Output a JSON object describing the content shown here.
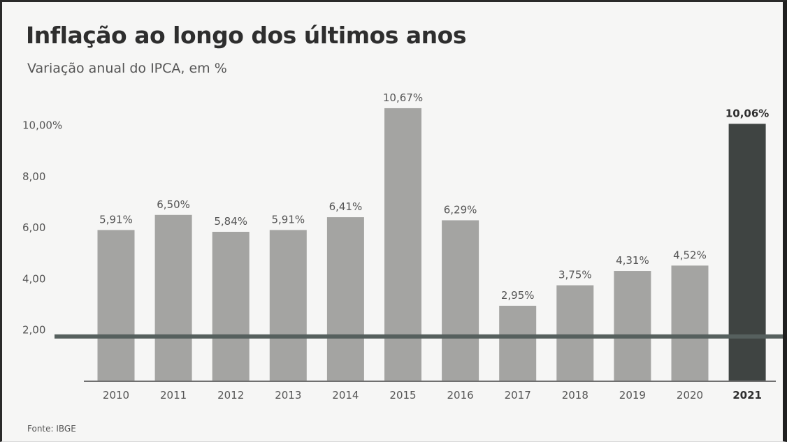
{
  "title": "Inflação ao longo dos últimos anos",
  "subtitle": "Variação anual do IPCA, em %",
  "source": "Fonte: IBGE",
  "colors": {
    "bar": "#a4a4a2",
    "bar_highlight": "#3f4442",
    "reference_line": "#56605e",
    "axis": "#707070",
    "text": "#555555"
  },
  "chart_data": {
    "type": "bar",
    "title": "Inflação ao longo dos últimos anos",
    "subtitle": "Variação anual do IPCA, em %",
    "categories": [
      "2010",
      "2011",
      "2012",
      "2013",
      "2014",
      "2015",
      "2016",
      "2017",
      "2018",
      "2019",
      "2020",
      "2021"
    ],
    "values": [
      5.91,
      6.5,
      5.84,
      5.91,
      6.41,
      10.67,
      6.29,
      2.95,
      3.75,
      4.31,
      4.52,
      10.06
    ],
    "value_labels": [
      "5,91%",
      "6,50%",
      "5,84%",
      "5,91%",
      "6,41%",
      "10,67%",
      "6,29%",
      "2,95%",
      "3,75%",
      "4,31%",
      "4,52%",
      "10,06%"
    ],
    "highlight_index": 11,
    "y_ticks": [
      {
        "value": 2,
        "label": "2,00"
      },
      {
        "value": 4,
        "label": "4,00"
      },
      {
        "value": 6,
        "label": "6,00"
      },
      {
        "value": 8,
        "label": "8,00"
      },
      {
        "value": 10,
        "label": "10,00%"
      }
    ],
    "ylim": [
      0,
      11
    ],
    "reference_line": 1.75,
    "grid": false,
    "legend": "none",
    "xlabel": "",
    "ylabel": ""
  }
}
